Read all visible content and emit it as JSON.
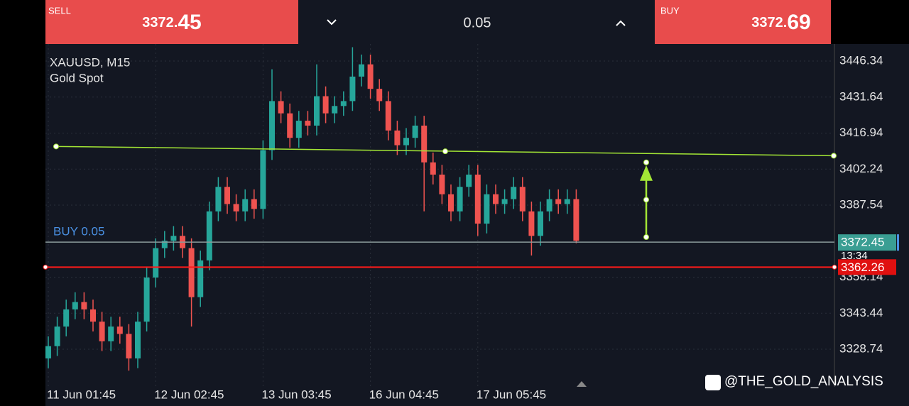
{
  "header": {
    "sell_label": "SELL",
    "sell_price": "3372.45",
    "lot": "0.05",
    "buy_label": "BUY",
    "buy_price": "3372.69"
  },
  "chart_data": {
    "type": "candlestick",
    "title": "XAUUSD, M15",
    "subtitle": "Gold Spot",
    "categories": [
      "11 Jun 01:45",
      null,
      null,
      null,
      null,
      null,
      null,
      null,
      null,
      null,
      null,
      null,
      "12 Jun 02:45",
      null,
      null,
      null,
      null,
      null,
      null,
      null,
      null,
      null,
      null,
      null,
      "13 Jun 03:45",
      null,
      null,
      null,
      null,
      null,
      null,
      null,
      null,
      null,
      null,
      null,
      "16 Jun 04:45",
      null,
      null,
      null,
      null,
      null,
      null,
      null,
      null,
      null,
      null,
      null,
      "17 Jun 05:45",
      null,
      null,
      null,
      null,
      null,
      null,
      null,
      null,
      null,
      null,
      null
    ],
    "open": [
      3325,
      3330,
      3338,
      3345,
      3348,
      3345,
      3340,
      3332,
      3338,
      3335,
      3325,
      3340,
      3358,
      3370,
      3373,
      3375,
      3370,
      3350,
      3365,
      3385,
      3395,
      3388,
      3385,
      3390,
      3386,
      3410,
      3430,
      3425,
      3415,
      3422,
      3420,
      3432,
      3425,
      3428,
      3430,
      3440,
      3445,
      3435,
      3430,
      3418,
      3412,
      3415,
      3420,
      3405,
      3400,
      3392,
      3385,
      3395,
      3400,
      3380,
      3392,
      3388,
      3390,
      3395,
      3385,
      3375,
      3385,
      3390,
      3388,
      3390
    ],
    "high": [
      3334,
      3342,
      3349,
      3352,
      3352,
      3349,
      3344,
      3342,
      3342,
      3339,
      3344,
      3362,
      3374,
      3377,
      3379,
      3379,
      3374,
      3369,
      3389,
      3399,
      3399,
      3392,
      3394,
      3394,
      3414,
      3443,
      3434,
      3429,
      3426,
      3426,
      3445,
      3436,
      3432,
      3434,
      3452,
      3449,
      3449,
      3439,
      3434,
      3422,
      3419,
      3424,
      3424,
      3409,
      3404,
      3396,
      3399,
      3404,
      3404,
      3396,
      3396,
      3394,
      3399,
      3399,
      3389,
      3389,
      3394,
      3394,
      3394,
      3394
    ],
    "low": [
      3321,
      3326,
      3334,
      3341,
      3341,
      3336,
      3328,
      3328,
      3331,
      3320,
      3321,
      3336,
      3354,
      3366,
      3369,
      3366,
      3338,
      3346,
      3361,
      3381,
      3384,
      3381,
      3381,
      3382,
      3382,
      3406,
      3421,
      3411,
      3411,
      3416,
      3416,
      3421,
      3421,
      3424,
      3426,
      3436,
      3431,
      3426,
      3414,
      3408,
      3408,
      3411,
      3385,
      3396,
      3388,
      3381,
      3381,
      3391,
      3375,
      3376,
      3384,
      3384,
      3386,
      3381,
      3367,
      3371,
      3381,
      3384,
      3384,
      3372
    ],
    "close": [
      3330,
      3338,
      3345,
      3348,
      3345,
      3340,
      3332,
      3338,
      3335,
      3325,
      3340,
      3358,
      3370,
      3373,
      3375,
      3370,
      3350,
      3365,
      3385,
      3395,
      3388,
      3385,
      3390,
      3386,
      3410,
      3430,
      3425,
      3415,
      3422,
      3420,
      3432,
      3425,
      3428,
      3430,
      3440,
      3445,
      3435,
      3430,
      3418,
      3412,
      3415,
      3420,
      3405,
      3400,
      3392,
      3385,
      3395,
      3400,
      3380,
      3392,
      3388,
      3390,
      3395,
      3385,
      3375,
      3385,
      3390,
      3388,
      3390,
      3373
    ],
    "up_color": "#26a69a",
    "down_color": "#ef5350",
    "ylim": [
      3313.4,
      3453.3
    ],
    "yticks": [
      3446.34,
      3431.64,
      3416.94,
      3402.24,
      3387.54,
      3358.14,
      3343.44,
      3328.74
    ],
    "grid": true,
    "trendline": {
      "color": "#a3e635",
      "values": [
        3411.5,
        3407.7
      ]
    },
    "target_arrow": {
      "color": "#a3e635",
      "values": [
        3374.5,
        3405
      ]
    },
    "position": {
      "label": "BUY 0.05",
      "price": 3372.45,
      "price_label": "3372.45",
      "timer": "13:34",
      "color": "#8a9a9a"
    },
    "stop": {
      "price": 3362.26,
      "price_label": "3362.26",
      "color": "#ff1a1a"
    }
  },
  "watermark": "@THE_GOLD_ANALYSIS"
}
